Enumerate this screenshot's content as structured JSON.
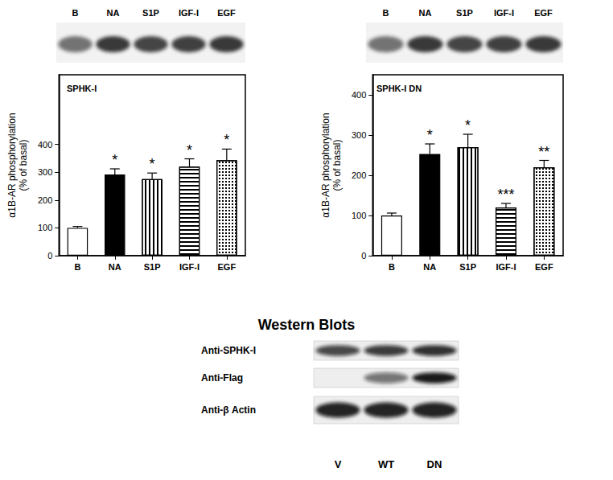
{
  "chart_data": [
    {
      "type": "bar",
      "title": "SPHK-I",
      "blot_lanes": [
        "B",
        "NA",
        "S1P",
        "IGF-I",
        "EGF"
      ],
      "categories": [
        "B",
        "NA",
        "S1P",
        "IGF-I",
        "EGF"
      ],
      "values": [
        100,
        292,
        275,
        320,
        343
      ],
      "errors": [
        5,
        20,
        22,
        28,
        40
      ],
      "significance": [
        null,
        "*",
        "*",
        "*",
        "*"
      ],
      "colors": [
        "#ffffff",
        "#000000",
        "#ffffff",
        "#ffffff",
        "#ffffff"
      ],
      "y_label": "α1B-AR phosphorylation\n(% of basal)",
      "ylim": [
        0,
        650
      ],
      "yticks": [
        0,
        100,
        200,
        300,
        400
      ],
      "grid": false
    },
    {
      "type": "bar",
      "title": "SPHK-I DN",
      "blot_lanes": [
        "B",
        "NA",
        "S1P",
        "IGF-I",
        "EGF"
      ],
      "categories": [
        "B",
        "NA",
        "S1P",
        "IGF-I",
        "EGF"
      ],
      "values": [
        100,
        253,
        270,
        120,
        220
      ],
      "errors": [
        6,
        25,
        32,
        10,
        17
      ],
      "significance": [
        null,
        "*",
        "*",
        "***",
        "**"
      ],
      "colors": [
        "#ffffff",
        "#000000",
        "#ffffff",
        "#ffffff",
        "#ffffff"
      ],
      "y_label": "α1B-AR phosphorylation\n(% of basal)",
      "ylim": [
        0,
        450
      ],
      "yticks": [
        0,
        100,
        200,
        300,
        400
      ],
      "grid": false
    }
  ],
  "figure": {
    "title": "Western Blots",
    "rows": [
      "Anti-SPHK-I",
      "Anti-Flag",
      "Anti-β Actin"
    ],
    "lanes": [
      "V",
      "WT",
      "DN"
    ]
  }
}
